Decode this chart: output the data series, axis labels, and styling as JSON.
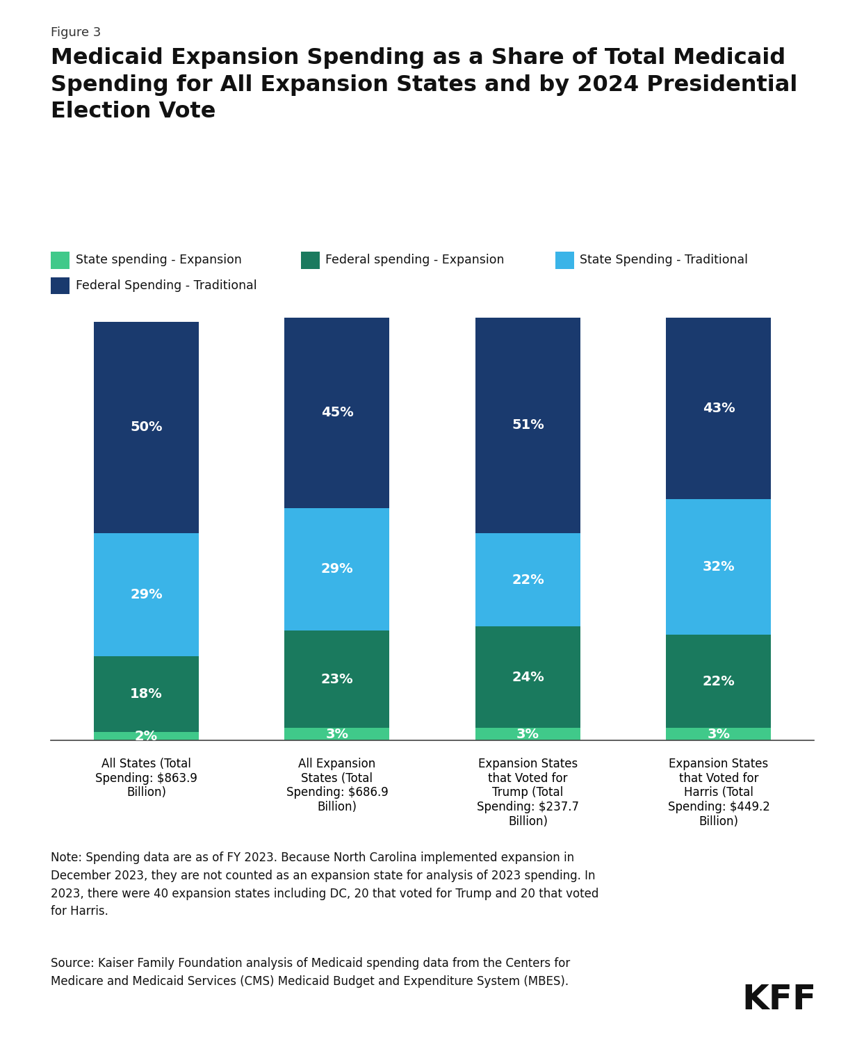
{
  "figure_label": "Figure 3",
  "title": "Medicaid Expansion Spending as a Share of Total Medicaid\nSpending for All Expansion States and by 2024 Presidential\nElection Vote",
  "categories": [
    "All States (Total\nSpending: $863.9\nBillion)",
    "All Expansion\nStates (Total\nSpending: $686.9\nBillion)",
    "Expansion States\nthat Voted for\nTrump (Total\nSpending: $237.7\nBillion)",
    "Expansion States\nthat Voted for\nHarris (Total\nSpending: $449.2\nBillion)"
  ],
  "segments": {
    "state_expansion": [
      2,
      3,
      3,
      3
    ],
    "federal_expansion": [
      18,
      23,
      24,
      22
    ],
    "state_traditional": [
      29,
      29,
      22,
      32
    ],
    "federal_traditional": [
      50,
      45,
      51,
      43
    ]
  },
  "colors": {
    "state_expansion": "#40c98a",
    "federal_expansion": "#1a7a5e",
    "state_traditional": "#3ab4e8",
    "federal_traditional": "#1a3a6e"
  },
  "legend_labels": [
    "State spending - Expansion",
    "Federal spending - Expansion",
    "State Spending - Traditional",
    "Federal Spending - Traditional"
  ],
  "note": "Note: Spending data are as of FY 2023. Because North Carolina implemented expansion in\nDecember 2023, they are not counted as an expansion state for analysis of 2023 spending. In\n2023, there were 40 expansion states including DC, 20 that voted for Trump and 20 that voted\nfor Harris.",
  "source": "Source: Kaiser Family Foundation analysis of Medicaid spending data from the Centers for\nMedicare and Medicaid Services (CMS) Medicaid Budget and Expenditure System (MBES).",
  "bg_color": "#ffffff",
  "bar_width": 0.55
}
